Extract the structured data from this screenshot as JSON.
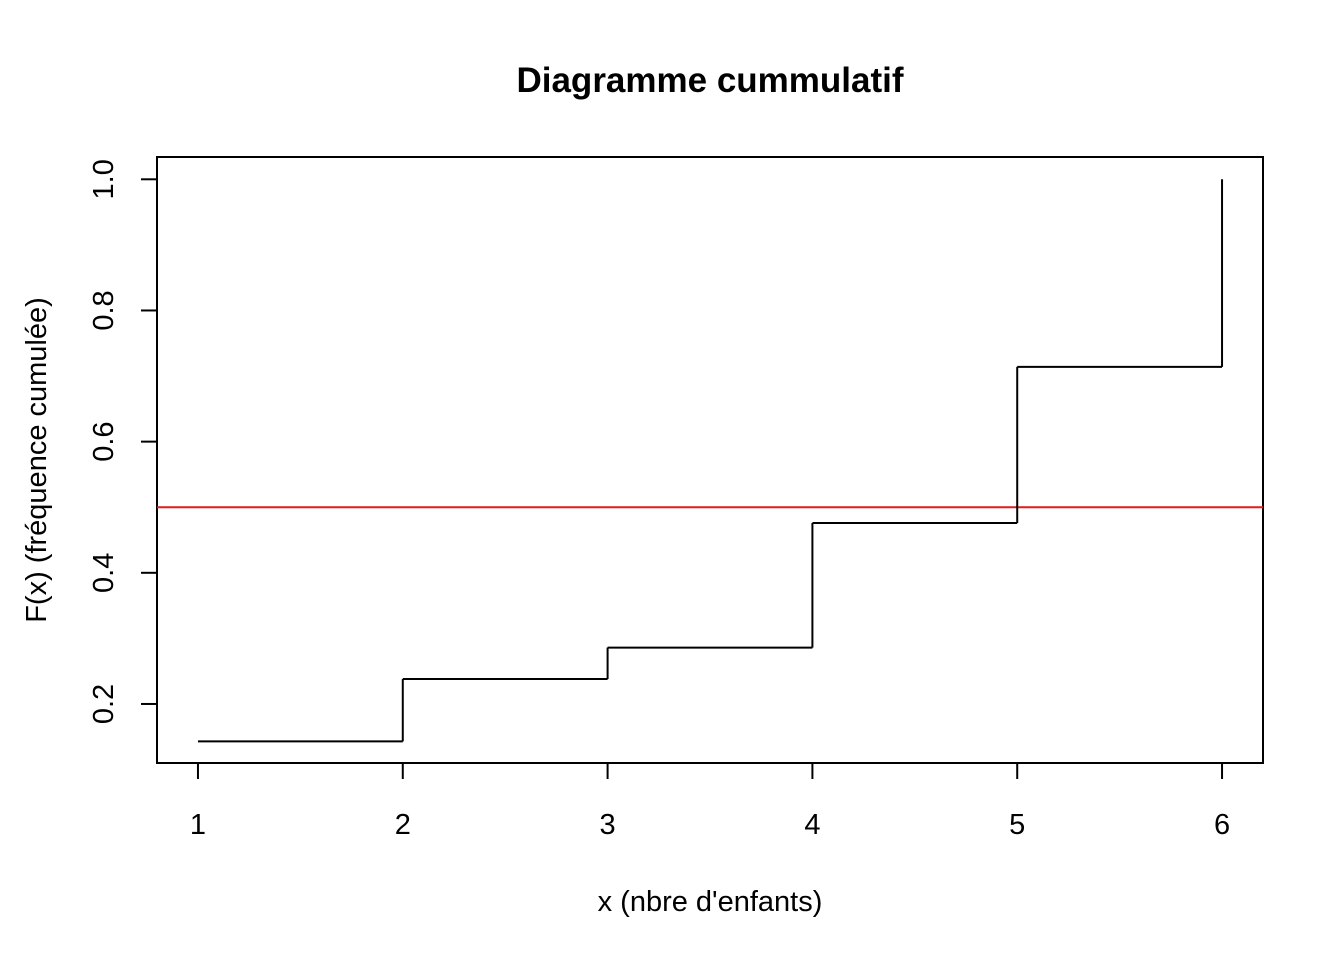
{
  "chart_data": {
    "type": "line",
    "step": true,
    "title": "Diagramme cummulatif",
    "xlabel": "x (nbre d'enfants)",
    "ylabel": "F(x) (fréquence cumulée)",
    "x": [
      1,
      2,
      3,
      4,
      5,
      6
    ],
    "series": [
      {
        "values": [
          0.143,
          0.238,
          0.286,
          0.476,
          0.714,
          1.0
        ],
        "color": "#000000"
      }
    ],
    "reference_line": {
      "orientation": "horizontal",
      "y": 0.5,
      "color": "#e41a1c"
    },
    "xlim": [
      0.8,
      6.2
    ],
    "ylim": [
      0.11,
      1.034
    ],
    "x_ticks": [
      1,
      2,
      3,
      4,
      5,
      6
    ],
    "x_tick_labels": [
      "1",
      "2",
      "3",
      "4",
      "5",
      "6"
    ],
    "y_ticks": [
      0.2,
      0.4,
      0.6,
      0.8,
      1.0
    ],
    "y_tick_labels": [
      "0.2",
      "0.4",
      "0.6",
      "0.8",
      "1.0"
    ],
    "grid": false,
    "box": true
  }
}
